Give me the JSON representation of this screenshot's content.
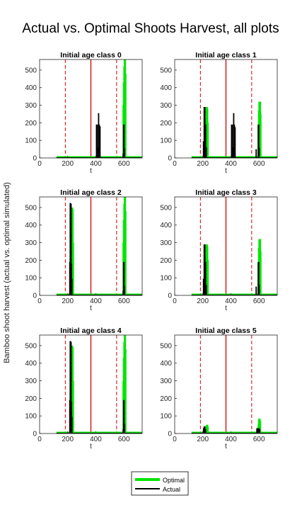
{
  "figure": {
    "title": "Actual vs. Optimal Shoots Harvest, all plots",
    "ylabel": "Bamboo shoot harvest (actual vs. optimal simulated)"
  },
  "legend": {
    "items": [
      {
        "label": "Optimal",
        "color": "#00e600"
      },
      {
        "label": "Actual",
        "color": "#000000"
      }
    ]
  },
  "colors": {
    "optimal": "#00e600",
    "actual": "#000000",
    "solid_vline": "#d40000",
    "dashed_vline": "#d40000"
  },
  "chart_data": [
    {
      "type": "bar",
      "title": "Initial age class 0",
      "xlabel": "t",
      "ylabel": "",
      "xlim": [
        0,
        730
      ],
      "ylim": [
        0,
        560
      ],
      "xticks": [
        0,
        200,
        400,
        600
      ],
      "yticks": [
        0,
        100,
        200,
        300,
        400,
        500
      ],
      "vlines_dashed": [
        183,
        548
      ],
      "vlines_solid": [
        365
      ],
      "series": [
        {
          "name": "Optimal",
          "x": [
            598,
            601,
            604,
            607,
            610
          ],
          "values": [
            300,
            430,
            520,
            560,
            480
          ]
        },
        {
          "name": "Actual",
          "x": [
            405,
            410,
            415,
            420,
            425,
            430,
            595,
            598,
            601,
            604
          ],
          "values": [
            190,
            190,
            60,
            255,
            190,
            180,
            25,
            190,
            190,
            55
          ]
        }
      ]
    },
    {
      "type": "bar",
      "title": "Initial age class 1",
      "xlabel": "t",
      "ylabel": "",
      "xlim": [
        0,
        730
      ],
      "ylim": [
        0,
        560
      ],
      "xticks": [
        0,
        200,
        400,
        600
      ],
      "yticks": [
        0,
        100,
        200,
        300,
        400,
        500
      ],
      "vlines_dashed": [
        183,
        548
      ],
      "vlines_solid": [
        365
      ],
      "series": [
        {
          "name": "Optimal",
          "x": [
            225,
            228,
            231,
            234,
            598,
            601,
            604,
            607,
            610
          ],
          "values": [
            220,
            290,
            280,
            200,
            180,
            270,
            320,
            320,
            250
          ]
        },
        {
          "name": "Actual",
          "x": [
            205,
            210,
            215,
            220,
            225,
            405,
            410,
            415,
            420,
            425,
            430,
            580,
            595,
            598,
            601
          ],
          "values": [
            95,
            290,
            290,
            190,
            60,
            190,
            190,
            60,
            255,
            190,
            175,
            50,
            190,
            190,
            60
          ]
        }
      ]
    },
    {
      "type": "bar",
      "title": "Initial age class 2",
      "xlabel": "t",
      "ylabel": "",
      "xlim": [
        0,
        730
      ],
      "ylim": [
        0,
        560
      ],
      "xticks": [
        0,
        200,
        400,
        600
      ],
      "yticks": [
        0,
        100,
        200,
        300,
        400,
        500
      ],
      "vlines_dashed": [
        183,
        548
      ],
      "vlines_solid": [
        365
      ],
      "series": [
        {
          "name": "Optimal",
          "x": [
            228,
            231,
            234,
            237,
            598,
            601,
            604,
            607,
            610
          ],
          "values": [
            380,
            500,
            490,
            300,
            300,
            430,
            520,
            560,
            480
          ]
        },
        {
          "name": "Actual",
          "x": [
            215,
            218,
            221,
            224,
            227,
            230,
            595,
            598,
            601,
            604
          ],
          "values": [
            190,
            525,
            525,
            520,
            180,
            95,
            25,
            190,
            190,
            55
          ]
        }
      ]
    },
    {
      "type": "bar",
      "title": "Initial age class 3",
      "xlabel": "t",
      "ylabel": "",
      "xlim": [
        0,
        730
      ],
      "ylim": [
        0,
        560
      ],
      "xticks": [
        0,
        200,
        400,
        600
      ],
      "yticks": [
        0,
        100,
        200,
        300,
        400,
        500
      ],
      "vlines_dashed": [
        183,
        548
      ],
      "vlines_solid": [
        365
      ],
      "series": [
        {
          "name": "Optimal",
          "x": [
            225,
            228,
            231,
            234,
            598,
            601,
            604,
            607,
            610
          ],
          "values": [
            220,
            290,
            280,
            200,
            180,
            270,
            320,
            320,
            250
          ]
        },
        {
          "name": "Actual",
          "x": [
            205,
            210,
            215,
            220,
            225,
            580,
            595,
            598,
            601
          ],
          "values": [
            95,
            290,
            290,
            190,
            60,
            50,
            190,
            190,
            60
          ]
        }
      ]
    },
    {
      "type": "bar",
      "title": "Initial age class 4",
      "xlabel": "t",
      "ylabel": "",
      "xlim": [
        0,
        730
      ],
      "ylim": [
        0,
        560
      ],
      "xticks": [
        0,
        200,
        400,
        600
      ],
      "yticks": [
        0,
        100,
        200,
        300,
        400,
        500
      ],
      "vlines_dashed": [
        183,
        548
      ],
      "vlines_solid": [
        365
      ],
      "series": [
        {
          "name": "Optimal",
          "x": [
            228,
            231,
            234,
            237,
            598,
            601,
            604,
            607,
            610
          ],
          "values": [
            380,
            500,
            490,
            300,
            300,
            430,
            520,
            560,
            480
          ]
        },
        {
          "name": "Actual",
          "x": [
            215,
            218,
            221,
            224,
            227,
            230,
            595,
            598,
            601,
            604
          ],
          "values": [
            190,
            525,
            525,
            520,
            180,
            95,
            25,
            190,
            190,
            55
          ]
        }
      ]
    },
    {
      "type": "bar",
      "title": "Initial age class 5",
      "xlabel": "t",
      "ylabel": "",
      "xlim": [
        0,
        730
      ],
      "ylim": [
        0,
        560
      ],
      "xticks": [
        0,
        200,
        400,
        600
      ],
      "yticks": [
        0,
        100,
        200,
        300,
        400,
        500
      ],
      "vlines_dashed": [
        183,
        548
      ],
      "vlines_solid": [
        365
      ],
      "series": [
        {
          "name": "Optimal",
          "x": [
            225,
            228,
            231,
            234,
            598,
            601,
            604,
            607
          ],
          "values": [
            30,
            45,
            50,
            40,
            50,
            80,
            85,
            70
          ]
        },
        {
          "name": "Actual",
          "x": [
            205,
            210,
            215,
            220,
            585,
            590,
            595,
            600,
            605
          ],
          "values": [
            30,
            40,
            40,
            25,
            30,
            30,
            30,
            30,
            25
          ]
        }
      ]
    }
  ]
}
